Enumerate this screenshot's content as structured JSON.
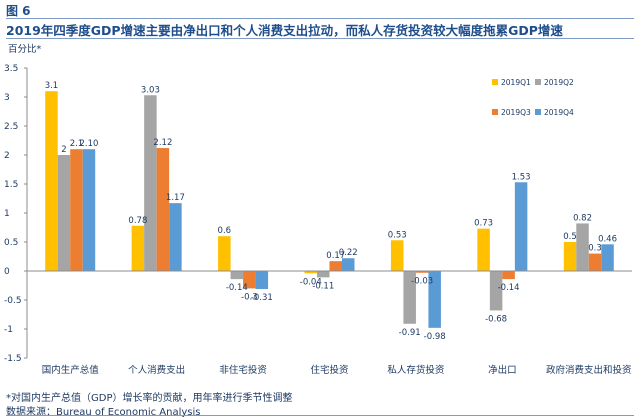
{
  "figure": {
    "label": "图 6",
    "title": "2019年四季度GDP增速主要由净出口和个人消费支出拉动，而私人存货投资较大幅度拖累GDP增速",
    "unit_label": "百分比*",
    "note": "*对国内生产总值（GDP）增长率的贡献，用年率进行季节性调整",
    "source": "数据来源：Bureau of Economic Analysis"
  },
  "chart_data": {
    "type": "bar",
    "title": "",
    "xlabel": "",
    "ylabel": "百分比*",
    "ylim": [
      -1.5,
      3.5
    ],
    "yticks": [
      -1.5,
      -1,
      -0.5,
      0,
      0.5,
      1,
      1.5,
      2,
      2.5,
      3,
      3.5
    ],
    "ytick_labels": [
      "-1.5",
      "-1",
      "-0.5",
      "0",
      "0.5",
      "1",
      "1.5",
      "2",
      "2.5",
      "3",
      "3.5"
    ],
    "grid": false,
    "legend": "top-right",
    "categories": [
      "国内生产总值",
      "个人消费支出",
      "非住宅投资",
      "住宅投资",
      "私人存货投资",
      "净出口",
      "政府消费支出和投资"
    ],
    "series": [
      {
        "name": "2019Q1",
        "color": "#ffc000",
        "values": [
          3.1,
          0.78,
          0.6,
          -0.04,
          0.53,
          0.73,
          0.5
        ],
        "labels": [
          "3.1",
          "0.78",
          "0.6",
          "-0.04",
          "0.53",
          "0.73",
          "0.5"
        ]
      },
      {
        "name": "2019Q2",
        "color": "#a5a5a5",
        "values": [
          2,
          3.03,
          -0.14,
          -0.11,
          -0.91,
          -0.68,
          0.82
        ],
        "labels": [
          "2",
          "3.03",
          "-0.14",
          "-0.11",
          "-0.91",
          "-0.68",
          "0.82"
        ]
      },
      {
        "name": "2019Q3",
        "color": "#ed7d31",
        "values": [
          2.1,
          2.12,
          -0.3,
          0.17,
          -0.03,
          -0.14,
          0.3
        ],
        "labels": [
          "2.1",
          "2.12",
          "-0.3",
          "0.17",
          "-0.03",
          "-0.14",
          "0.3"
        ]
      },
      {
        "name": "2019Q4",
        "color": "#5b9bd5",
        "values": [
          2.1,
          1.17,
          -0.31,
          0.22,
          -0.98,
          1.53,
          0.46
        ],
        "labels": [
          "2.10",
          "1.17",
          "-0.31",
          "0.22",
          "-0.98",
          "1.53",
          "0.46"
        ]
      }
    ]
  }
}
